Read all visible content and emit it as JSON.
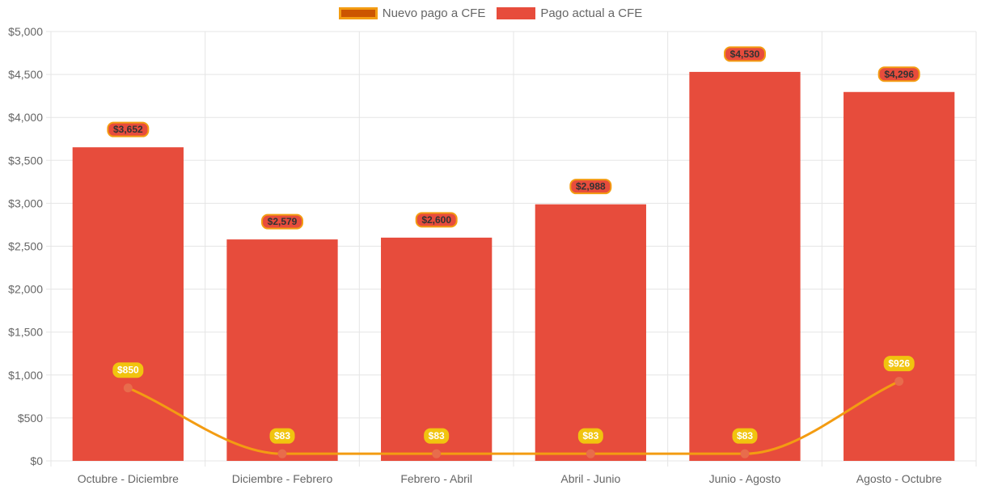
{
  "legend": {
    "line_label": "Nuevo pago a CFE",
    "bar_label": "Pago actual a CFE"
  },
  "colors": {
    "bar": "#e74c3c",
    "line": "#f39c12",
    "line_point": "#e86c4c",
    "line_swatch_fill": "#cc5500",
    "bar_label_bg": "#e74c3c",
    "bar_label_border": "#f39c12",
    "bar_label_text": "#333333",
    "line_label_bg": "#f1c40f",
    "line_label_text": "#ffffff",
    "grid": "#e5e5e5",
    "tick": "#666666"
  },
  "chart_data": {
    "type": "bar",
    "categories": [
      "Octubre - Diciembre",
      "Diciembre - Febrero",
      "Febrero - Abril",
      "Abril - Junio",
      "Junio - Agosto",
      "Agosto - Octubre"
    ],
    "series": [
      {
        "name": "Pago actual a CFE",
        "type": "bar",
        "values": [
          3652,
          2579,
          2600,
          2988,
          4530,
          4296
        ],
        "labels": [
          "$3,652",
          "$2,579",
          "$2,600",
          "$2,988",
          "$4,530",
          "$4,296"
        ]
      },
      {
        "name": "Nuevo pago a CFE",
        "type": "line",
        "values": [
          850,
          83,
          83,
          83,
          83,
          926
        ],
        "labels": [
          "$850",
          "$83",
          "$83",
          "$83",
          "$83",
          "$926"
        ]
      }
    ],
    "ylim": [
      0,
      5000
    ],
    "yticks": [
      0,
      500,
      1000,
      1500,
      2000,
      2500,
      3000,
      3500,
      4000,
      4500,
      5000
    ],
    "ytick_labels": [
      "$0",
      "$500",
      "$1,000",
      "$1,500",
      "$2,000",
      "$2,500",
      "$3,000",
      "$3,500",
      "$4,000",
      "$4,500",
      "$5,000"
    ],
    "title": "",
    "xlabel": "",
    "ylabel": "",
    "legend_position": "top-center",
    "grid": true
  }
}
